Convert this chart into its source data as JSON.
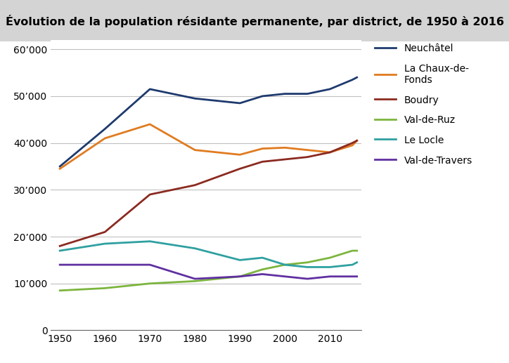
{
  "title": "Évolution de la population résidante permanente, par district, de 1950 à 2016",
  "years": [
    1950,
    1960,
    1970,
    1980,
    1990,
    1995,
    2000,
    2005,
    2010,
    2015,
    2016
  ],
  "series": [
    {
      "name": "Neuchâtel",
      "color": "#1e3a6e",
      "values": [
        35000,
        43000,
        51500,
        49500,
        48500,
        50000,
        50500,
        50500,
        51500,
        53500,
        54000
      ]
    },
    {
      "name": "La Chaux-de-\nFonds",
      "color": "#e07b20",
      "values": [
        34500,
        41000,
        44000,
        38500,
        37500,
        38800,
        39000,
        38500,
        38000,
        39500,
        40500
      ]
    },
    {
      "name": "Boudry",
      "color": "#8b2a20",
      "values": [
        18000,
        21000,
        29000,
        31000,
        34500,
        36000,
        36500,
        37000,
        38000,
        40000,
        40500
      ]
    },
    {
      "name": "Val-de-Ruz",
      "color": "#7cb53e",
      "values": [
        8500,
        9000,
        10000,
        10500,
        11500,
        13000,
        14000,
        14500,
        15500,
        17000,
        17000
      ]
    },
    {
      "name": "Le Locle",
      "color": "#2fa0a0",
      "values": [
        17000,
        18500,
        19000,
        17500,
        15000,
        15500,
        14000,
        13500,
        13500,
        14000,
        14500
      ]
    },
    {
      "name": "Val-de-Travers",
      "color": "#6030a0",
      "values": [
        14000,
        14000,
        14000,
        11000,
        11500,
        12000,
        11500,
        11000,
        11500,
        11500,
        11500
      ]
    }
  ],
  "xlim": [
    1948,
    2017
  ],
  "ylim": [
    0,
    62000
  ],
  "yticks": [
    0,
    10000,
    20000,
    30000,
    40000,
    50000,
    60000
  ],
  "xticks": [
    1950,
    1960,
    1970,
    1980,
    1990,
    2000,
    2010
  ],
  "title_bg_color": "#d4d4d4",
  "plot_bg_color": "#ffffff",
  "grid_color": "#c0c0c0",
  "title_fontsize": 11.5,
  "legend_fontsize": 10,
  "tick_fontsize": 10
}
